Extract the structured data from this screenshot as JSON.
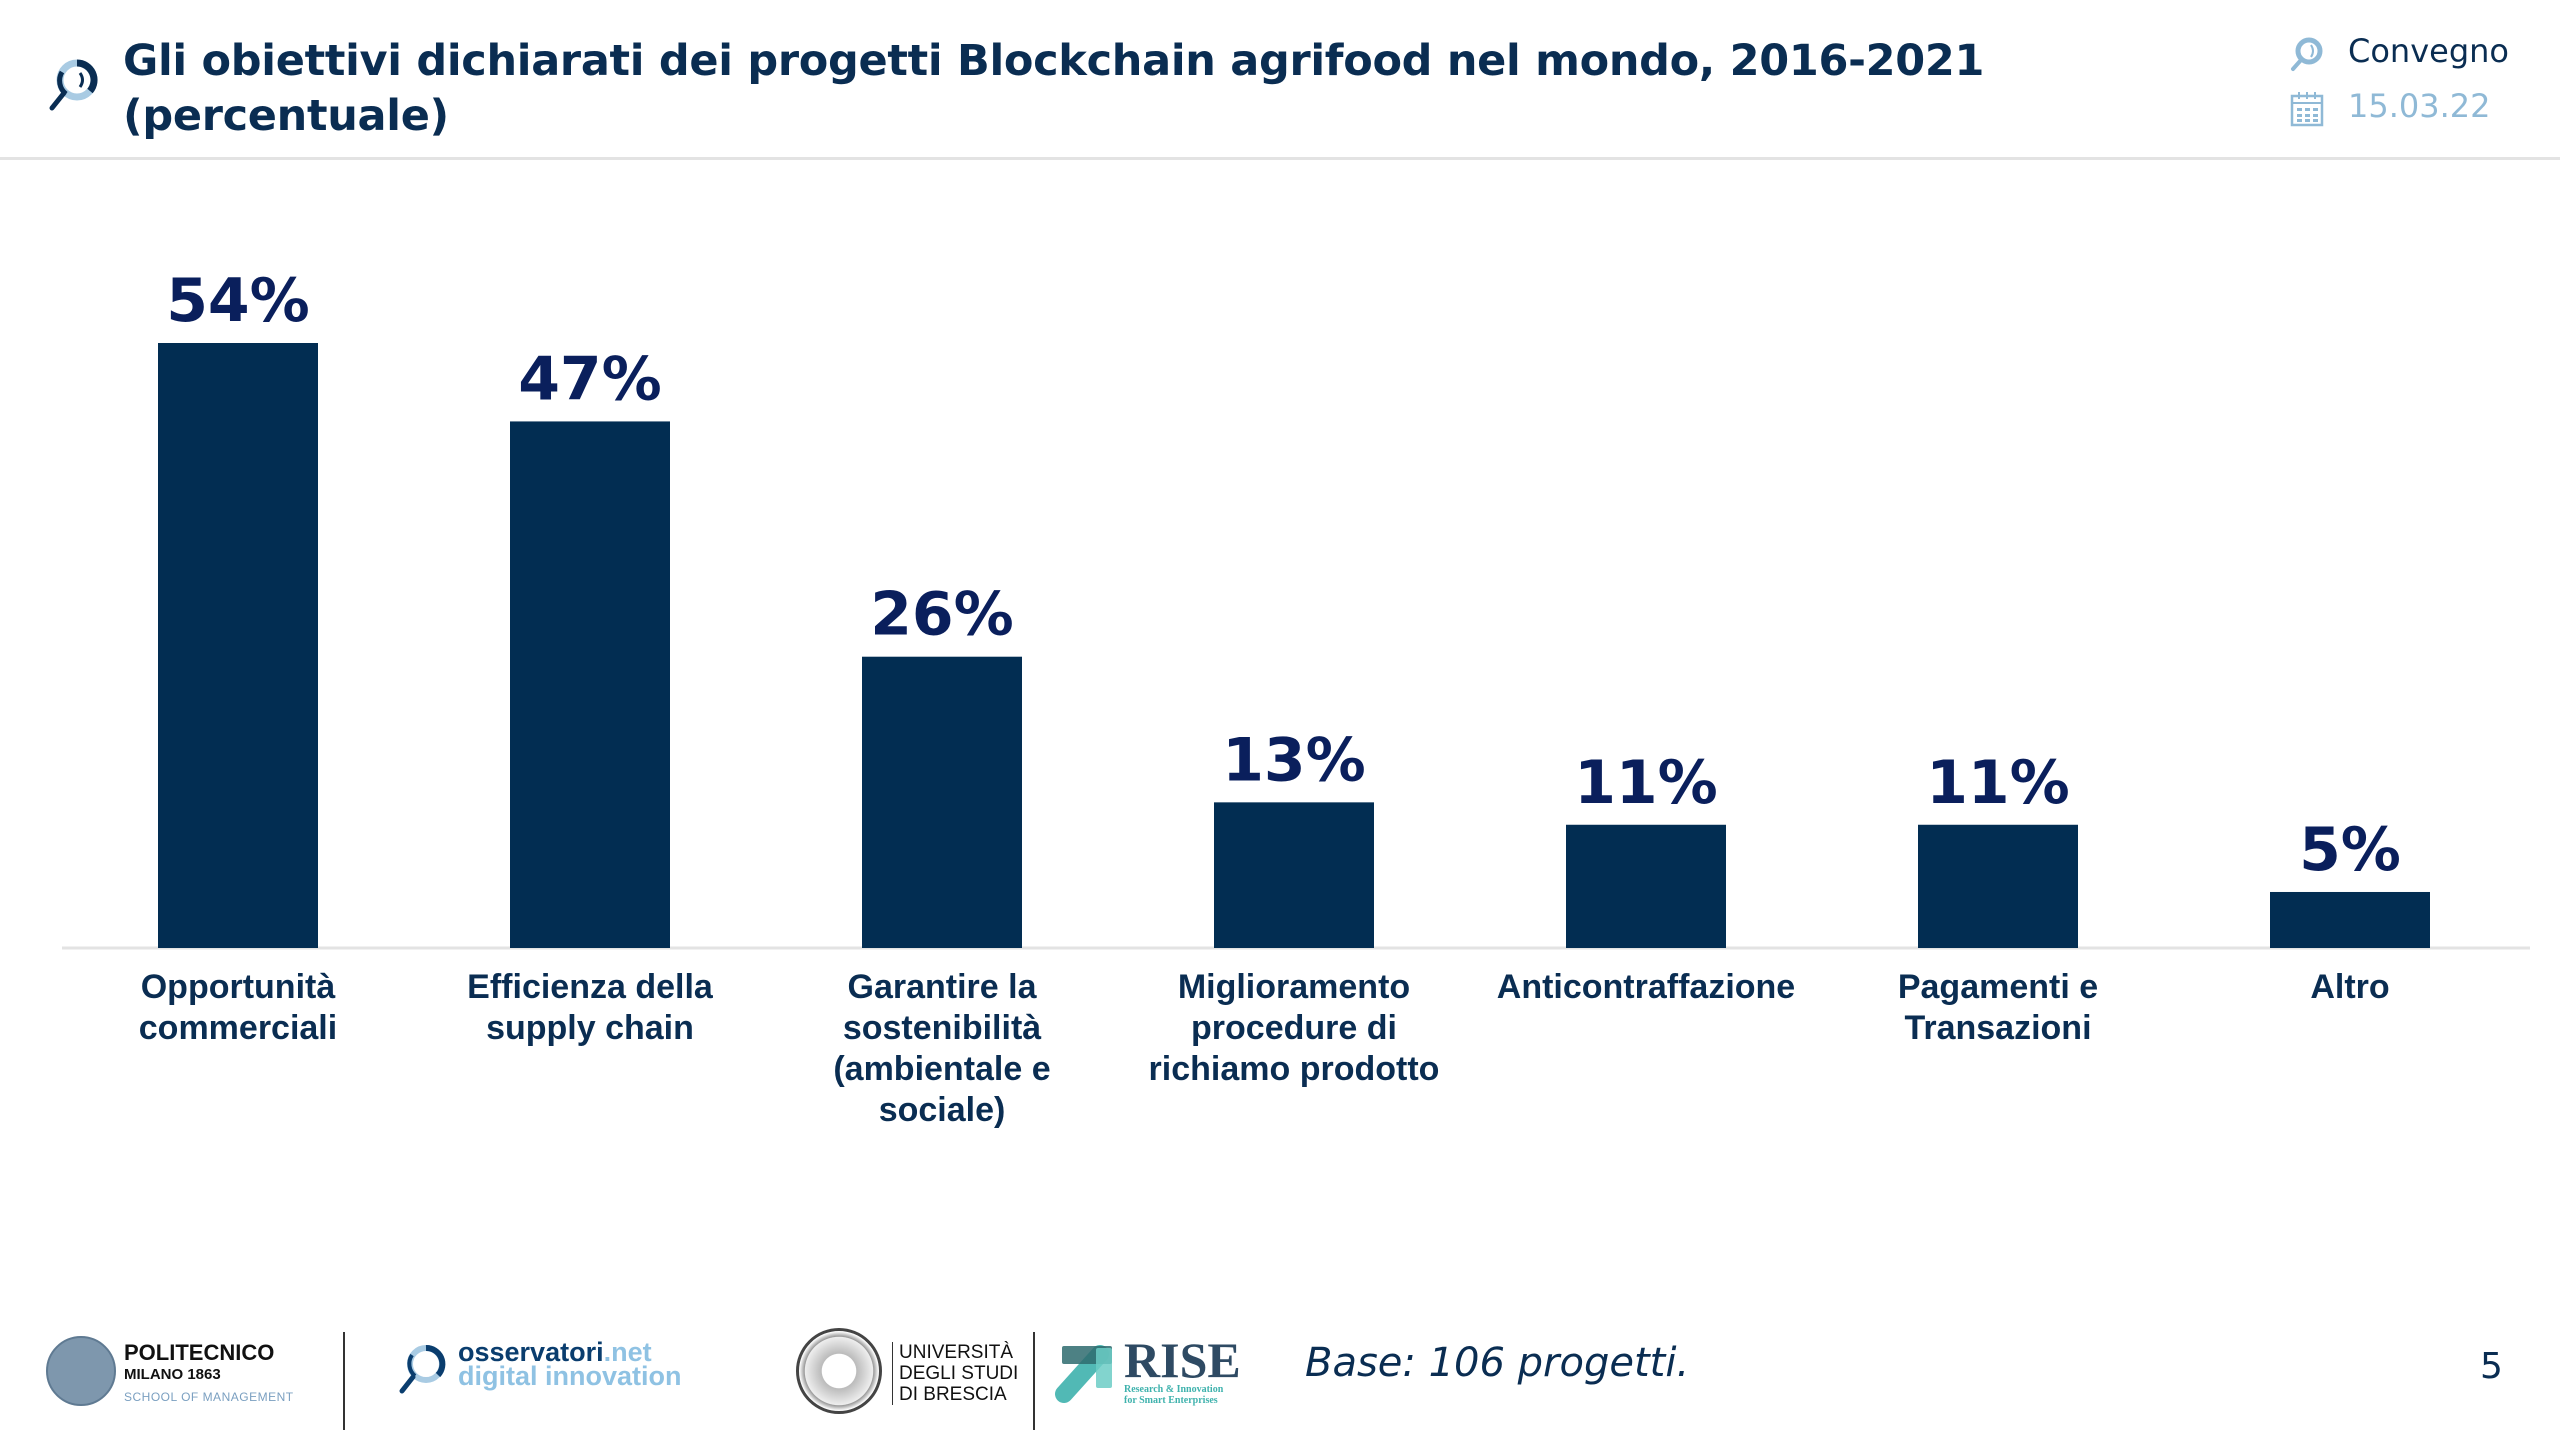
{
  "header": {
    "title": "Gli obiettivi dichiarati dei progetti Blockchain agrifood nel mondo, 2016-2021 (percentuale)",
    "title_icon": "magnifier-icon",
    "event_label": "Convegno",
    "event_icon": "magnifier-icon",
    "date": "15.03.22",
    "date_icon": "calendar-icon"
  },
  "colors": {
    "bar": "#022d52",
    "value_label": "#0a1f5c",
    "text": "#0a2d52",
    "accent_light": "#8fb9d6",
    "axis": "#e3e3e3"
  },
  "chart_data": {
    "type": "bar",
    "title": "Gli obiettivi dichiarati dei progetti Blockchain agrifood nel mondo, 2016-2021 (percentuale)",
    "xlabel": "",
    "ylabel": "",
    "ylim": [
      0,
      60
    ],
    "grid": false,
    "legend": "none",
    "unit": "%",
    "categories": [
      [
        "Opportunità",
        "commerciali"
      ],
      [
        "Efficienza della",
        "supply chain"
      ],
      [
        "Garantire la",
        "sostenibilità",
        "(ambientale e",
        "sociale)"
      ],
      [
        "Miglioramento",
        "procedure di",
        "richiamo prodotto"
      ],
      [
        "Anticontraffazione"
      ],
      [
        "Pagamenti e",
        "Transazioni"
      ],
      [
        "Altro"
      ]
    ],
    "values": [
      54,
      47,
      26,
      13,
      11,
      11,
      5
    ],
    "data_labels": [
      "54%",
      "47%",
      "26%",
      "13%",
      "11%",
      "11%",
      "5%"
    ]
  },
  "footer": {
    "logos": {
      "polimi": {
        "line1": "POLITECNICO",
        "line2": "MILANO 1863",
        "line3": "SCHOOL OF MANAGEMENT"
      },
      "osservatori": {
        "line1a": "osservatori",
        "line1b": ".net",
        "line2": "digital innovation"
      },
      "brescia": {
        "line1": "UNIVERSITÀ",
        "line2": "DEGLI STUDI",
        "line3": "DI BRESCIA"
      },
      "rise": {
        "name": "RISE",
        "line1": "Research & Innovation",
        "line2": "for Smart Enterprises"
      }
    },
    "base_note": "Base: 106 progetti.",
    "page_number": "5"
  }
}
